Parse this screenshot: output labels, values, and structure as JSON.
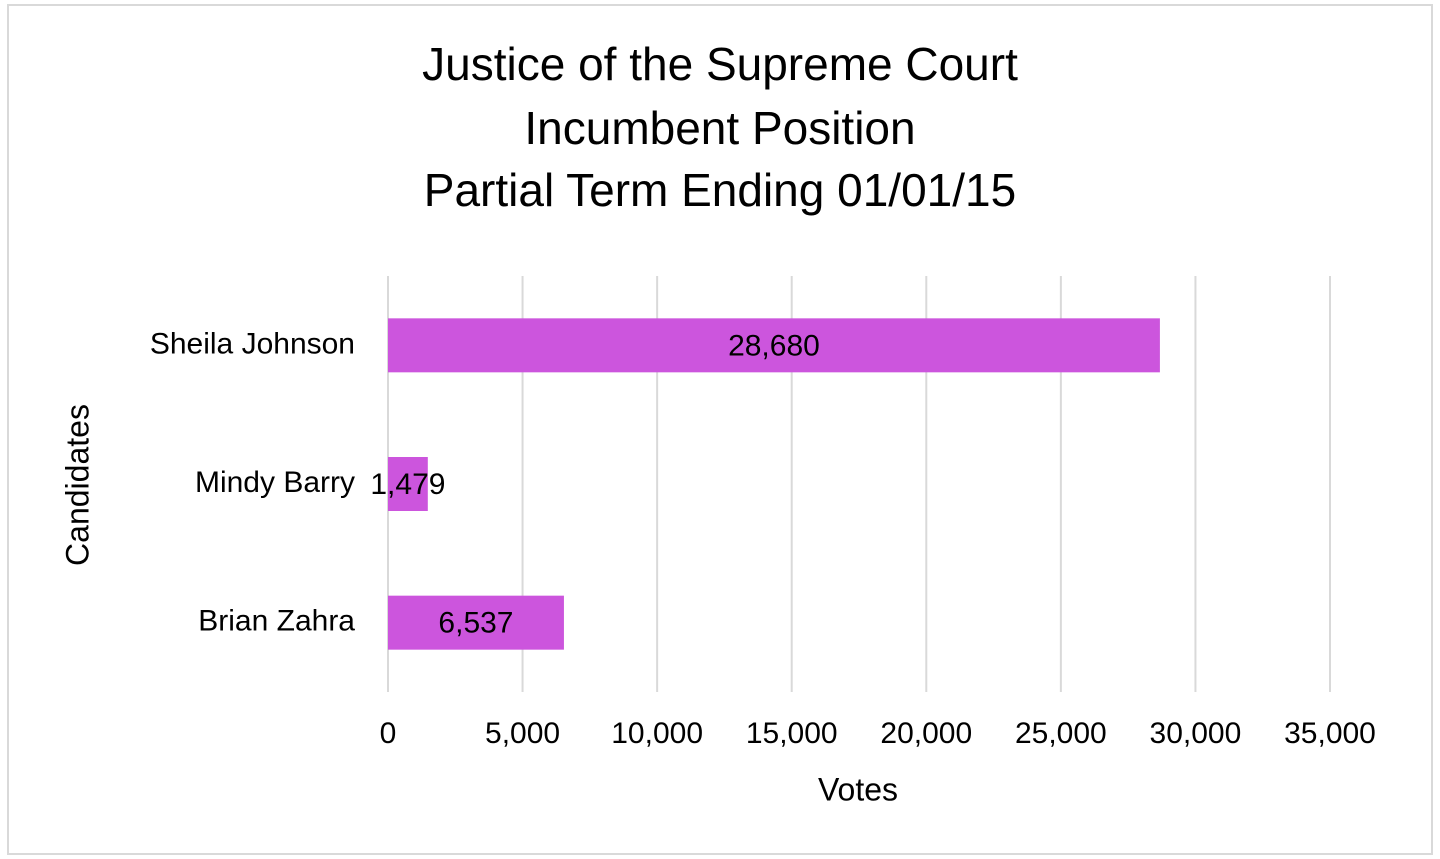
{
  "chart_data": {
    "type": "barh",
    "title": [
      "Justice of the Supreme Court",
      "Incumbent Position",
      "Partial Term Ending 01/01/15"
    ],
    "xlabel": "Votes",
    "ylabel": "Candidates",
    "categories": [
      "Sheila Johnson",
      "Mindy Barry",
      "Brian Zahra"
    ],
    "values": [
      28680,
      1479,
      6537
    ],
    "value_labels": [
      "28,680",
      "1,479",
      "6,537"
    ],
    "color": "#cc55dd",
    "xlim": [
      0,
      35000
    ],
    "xticks": [
      0,
      {
        "value": 5000,
        "label": "5,000"
      },
      {
        "value": 10000,
        "label": "10,000"
      },
      {
        "value": 15000,
        "label": "15,000"
      },
      {
        "value": 20000,
        "label": "20,000"
      },
      {
        "value": 25000,
        "label": "25,000"
      },
      {
        "value": 30000,
        "label": "30,000"
      },
      {
        "value": 35000,
        "label": "35,000"
      }
    ],
    "grid": true
  }
}
